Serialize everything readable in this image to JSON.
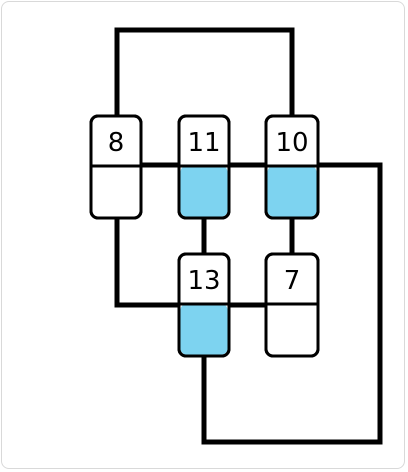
{
  "puzzle": {
    "colors": {
      "line": "#000000",
      "filled": "#7dd3f0",
      "empty": "#ffffff"
    },
    "nodes": [
      {
        "id": "node-8",
        "label": "8",
        "filled": false
      },
      {
        "id": "node-11",
        "label": "11",
        "filled": true
      },
      {
        "id": "node-10",
        "label": "10",
        "filled": true
      },
      {
        "id": "node-13",
        "label": "13",
        "filled": true
      },
      {
        "id": "node-7",
        "label": "7",
        "filled": false
      }
    ]
  }
}
